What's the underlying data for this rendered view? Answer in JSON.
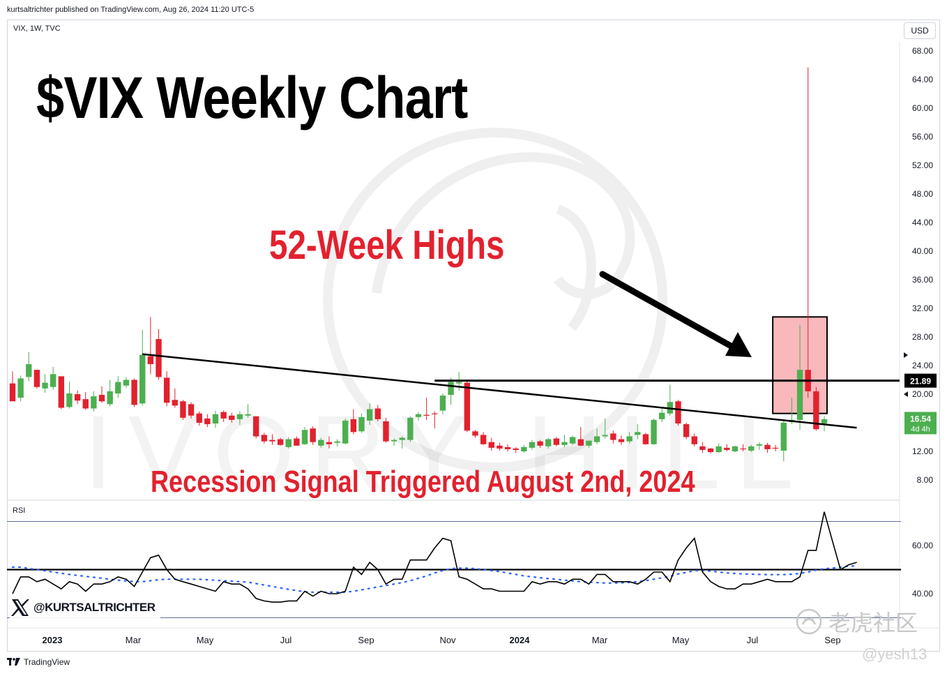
{
  "header": {
    "published_line": "kurtsaltrichter published on TradingView.com, Aug 26, 2024 11:20 UTC-5",
    "symbol_line": "VIX, 1W, TVC",
    "currency": "USD"
  },
  "annotations": {
    "main_title": "$VIX Weekly Chart",
    "highs_label": "52-Week Highs",
    "recession_label": "Recession Signal Triggered August 2nd, 2024"
  },
  "rsi": {
    "label": "RSI",
    "upper_band": 70,
    "lower_band": 30,
    "midline": 50
  },
  "social_handle": "@KURTSALTRICHTER",
  "footer_brand": "TradingView",
  "watermarks": {
    "background": "IVORY HILL",
    "corner_cn": "老虎社区",
    "corner_user": "@yesh13"
  },
  "colors": {
    "up": "#4caf50",
    "down": "#e2212e",
    "trendline": "#000000",
    "box_fill": "#f7a1a6",
    "box_stroke": "#000000",
    "rsi_line": "#000000",
    "rsi_ma": "#2962ff",
    "band": "#2a3f7a",
    "last_price_bg": "#4caf50",
    "level_bg": "#000000"
  },
  "chart_data": [
    {
      "type": "candlestick",
      "title": "",
      "x_ticks": [
        "2023",
        "Mar",
        "May",
        "Jul",
        "Sep",
        "Nov",
        "2024",
        "Mar",
        "May",
        "Jul",
        "Sep"
      ],
      "y_ticks": [
        "68.00",
        "64.00",
        "60.00",
        "56.00",
        "52.00",
        "48.00",
        "44.00",
        "40.00",
        "36.00",
        "32.00",
        "28.00",
        "24.00",
        "20.00",
        "12.00",
        "8.00"
      ],
      "ylim": [
        4.5,
        71
      ],
      "grid": false,
      "candles": [
        {
          "o": 21.5,
          "h": 23.2,
          "l": 19.0,
          "c": 19.0
        },
        {
          "o": 19.5,
          "h": 22.6,
          "l": 19.0,
          "c": 22.2
        },
        {
          "o": 22.4,
          "h": 25.9,
          "l": 21.8,
          "c": 24.2
        },
        {
          "o": 23.4,
          "h": 23.4,
          "l": 20.8,
          "c": 21.0
        },
        {
          "o": 20.8,
          "h": 22.8,
          "l": 20.2,
          "c": 21.6
        },
        {
          "o": 21.0,
          "h": 23.8,
          "l": 20.6,
          "c": 22.8
        },
        {
          "o": 22.5,
          "h": 22.5,
          "l": 17.9,
          "c": 18.1
        },
        {
          "o": 18.2,
          "h": 21.8,
          "l": 18.0,
          "c": 20.1
        },
        {
          "o": 20.0,
          "h": 20.5,
          "l": 18.6,
          "c": 19.1
        },
        {
          "o": 19.3,
          "h": 20.3,
          "l": 17.8,
          "c": 18.0
        },
        {
          "o": 18.0,
          "h": 20.4,
          "l": 17.6,
          "c": 19.7
        },
        {
          "o": 19.9,
          "h": 21.1,
          "l": 18.8,
          "c": 19.0
        },
        {
          "o": 18.6,
          "h": 22.0,
          "l": 18.3,
          "c": 20.4
        },
        {
          "o": 20.1,
          "h": 22.5,
          "l": 19.5,
          "c": 21.7
        },
        {
          "o": 21.2,
          "h": 22.4,
          "l": 20.9,
          "c": 22.0
        },
        {
          "o": 22.0,
          "h": 22.2,
          "l": 18.2,
          "c": 18.5
        },
        {
          "o": 18.7,
          "h": 29.0,
          "l": 18.4,
          "c": 25.5
        },
        {
          "o": 25.3,
          "h": 30.8,
          "l": 22.8,
          "c": 24.2
        },
        {
          "o": 27.7,
          "h": 29.1,
          "l": 22.0,
          "c": 22.4
        },
        {
          "o": 22.3,
          "h": 23.2,
          "l": 18.3,
          "c": 18.8
        },
        {
          "o": 19.2,
          "h": 20.8,
          "l": 18.1,
          "c": 18.4
        },
        {
          "o": 19.0,
          "h": 19.2,
          "l": 16.4,
          "c": 16.7
        },
        {
          "o": 18.6,
          "h": 18.9,
          "l": 16.6,
          "c": 17.0
        },
        {
          "o": 17.3,
          "h": 17.6,
          "l": 15.6,
          "c": 16.0
        },
        {
          "o": 16.6,
          "h": 17.2,
          "l": 15.4,
          "c": 15.8
        },
        {
          "o": 15.9,
          "h": 17.7,
          "l": 15.3,
          "c": 17.2
        },
        {
          "o": 17.5,
          "h": 17.7,
          "l": 16.1,
          "c": 16.6
        },
        {
          "o": 17.0,
          "h": 17.4,
          "l": 16.0,
          "c": 16.4
        },
        {
          "o": 16.5,
          "h": 17.6,
          "l": 15.7,
          "c": 17.2
        },
        {
          "o": 17.0,
          "h": 18.6,
          "l": 16.7,
          "c": 17.2
        },
        {
          "o": 16.9,
          "h": 16.9,
          "l": 13.8,
          "c": 14.1
        },
        {
          "o": 14.3,
          "h": 14.6,
          "l": 13.1,
          "c": 13.4
        },
        {
          "o": 13.6,
          "h": 14.4,
          "l": 12.9,
          "c": 13.4
        },
        {
          "o": 13.7,
          "h": 13.9,
          "l": 12.8,
          "c": 12.9
        },
        {
          "o": 12.6,
          "h": 14.0,
          "l": 12.4,
          "c": 13.7
        },
        {
          "o": 13.8,
          "h": 14.1,
          "l": 12.8,
          "c": 12.8
        },
        {
          "o": 13.0,
          "h": 15.4,
          "l": 12.9,
          "c": 15.0
        },
        {
          "o": 15.2,
          "h": 15.5,
          "l": 12.9,
          "c": 13.3
        },
        {
          "o": 12.8,
          "h": 13.9,
          "l": 12.5,
          "c": 13.6
        },
        {
          "o": 13.3,
          "h": 14.1,
          "l": 12.4,
          "c": 13.0
        },
        {
          "o": 13.2,
          "h": 13.7,
          "l": 12.7,
          "c": 13.4
        },
        {
          "o": 13.1,
          "h": 16.6,
          "l": 13.0,
          "c": 16.3
        },
        {
          "o": 16.5,
          "h": 17.9,
          "l": 14.4,
          "c": 14.7
        },
        {
          "o": 14.8,
          "h": 17.3,
          "l": 14.6,
          "c": 16.8
        },
        {
          "o": 16.3,
          "h": 18.7,
          "l": 15.7,
          "c": 17.9
        },
        {
          "o": 18.0,
          "h": 18.5,
          "l": 16.2,
          "c": 16.5
        },
        {
          "o": 16.2,
          "h": 16.7,
          "l": 13.2,
          "c": 13.4
        },
        {
          "o": 13.4,
          "h": 13.8,
          "l": 12.8,
          "c": 13.6
        },
        {
          "o": 13.6,
          "h": 14.1,
          "l": 12.4,
          "c": 13.9
        },
        {
          "o": 13.6,
          "h": 16.9,
          "l": 13.3,
          "c": 16.7
        },
        {
          "o": 16.8,
          "h": 17.5,
          "l": 16.3,
          "c": 17.2
        },
        {
          "o": 17.1,
          "h": 19.5,
          "l": 16.4,
          "c": 17.0
        },
        {
          "o": 17.3,
          "h": 17.6,
          "l": 15.2,
          "c": 17.2
        },
        {
          "o": 17.7,
          "h": 20.1,
          "l": 17.2,
          "c": 19.8
        },
        {
          "o": 19.9,
          "h": 22.3,
          "l": 18.5,
          "c": 21.7
        },
        {
          "o": 21.5,
          "h": 23.1,
          "l": 20.5,
          "c": 21.7
        },
        {
          "o": 21.6,
          "h": 21.8,
          "l": 14.7,
          "c": 14.9
        },
        {
          "o": 14.8,
          "h": 15.0,
          "l": 13.9,
          "c": 14.2
        },
        {
          "o": 14.3,
          "h": 14.7,
          "l": 12.9,
          "c": 13.0
        },
        {
          "o": 13.3,
          "h": 13.9,
          "l": 12.1,
          "c": 12.5
        },
        {
          "o": 12.8,
          "h": 13.2,
          "l": 12.1,
          "c": 12.4
        },
        {
          "o": 12.6,
          "h": 13.0,
          "l": 12.0,
          "c": 12.3
        },
        {
          "o": 12.4,
          "h": 12.6,
          "l": 11.8,
          "c": 12.2
        },
        {
          "o": 12.0,
          "h": 12.9,
          "l": 11.8,
          "c": 12.6
        },
        {
          "o": 12.5,
          "h": 13.6,
          "l": 12.2,
          "c": 13.3
        },
        {
          "o": 13.4,
          "h": 13.6,
          "l": 12.5,
          "c": 12.8
        },
        {
          "o": 12.7,
          "h": 13.9,
          "l": 12.4,
          "c": 13.7
        },
        {
          "o": 13.8,
          "h": 14.0,
          "l": 12.7,
          "c": 12.9
        },
        {
          "o": 12.9,
          "h": 14.3,
          "l": 12.6,
          "c": 13.3
        },
        {
          "o": 13.1,
          "h": 14.2,
          "l": 12.9,
          "c": 14.0
        },
        {
          "o": 13.7,
          "h": 15.4,
          "l": 12.7,
          "c": 12.8
        },
        {
          "o": 12.8,
          "h": 13.3,
          "l": 12.5,
          "c": 13.5
        },
        {
          "o": 13.3,
          "h": 15.2,
          "l": 13.0,
          "c": 14.1
        },
        {
          "o": 14.1,
          "h": 16.6,
          "l": 13.8,
          "c": 14.3
        },
        {
          "o": 14.5,
          "h": 14.9,
          "l": 13.1,
          "c": 13.6
        },
        {
          "o": 13.7,
          "h": 14.2,
          "l": 12.9,
          "c": 13.3
        },
        {
          "o": 13.4,
          "h": 14.7,
          "l": 13.1,
          "c": 14.1
        },
        {
          "o": 14.3,
          "h": 15.8,
          "l": 13.7,
          "c": 14.7
        },
        {
          "o": 14.4,
          "h": 14.6,
          "l": 12.9,
          "c": 13.0
        },
        {
          "o": 13.0,
          "h": 16.6,
          "l": 12.9,
          "c": 16.4
        },
        {
          "o": 16.5,
          "h": 18.0,
          "l": 16.1,
          "c": 17.4
        },
        {
          "o": 17.3,
          "h": 21.3,
          "l": 17.0,
          "c": 18.9
        },
        {
          "o": 19.0,
          "h": 19.2,
          "l": 15.6,
          "c": 15.9
        },
        {
          "o": 15.8,
          "h": 16.0,
          "l": 13.7,
          "c": 14.0
        },
        {
          "o": 14.1,
          "h": 14.5,
          "l": 12.7,
          "c": 13.0
        },
        {
          "o": 12.7,
          "h": 13.3,
          "l": 11.8,
          "c": 12.2
        },
        {
          "o": 12.4,
          "h": 12.5,
          "l": 11.7,
          "c": 11.9
        },
        {
          "o": 11.9,
          "h": 13.1,
          "l": 11.8,
          "c": 12.7
        },
        {
          "o": 12.5,
          "h": 13.0,
          "l": 12.0,
          "c": 12.2
        },
        {
          "o": 12.0,
          "h": 12.8,
          "l": 11.9,
          "c": 12.7
        },
        {
          "o": 12.4,
          "h": 13.0,
          "l": 12.0,
          "c": 12.3
        },
        {
          "o": 12.1,
          "h": 12.9,
          "l": 11.9,
          "c": 12.7
        },
        {
          "o": 12.8,
          "h": 13.3,
          "l": 12.2,
          "c": 13.0
        },
        {
          "o": 12.9,
          "h": 13.2,
          "l": 11.8,
          "c": 12.3
        },
        {
          "o": 12.5,
          "h": 12.9,
          "l": 12.0,
          "c": 12.4
        },
        {
          "o": 12.1,
          "h": 16.3,
          "l": 10.6,
          "c": 16.0
        },
        {
          "o": 16.1,
          "h": 19.5,
          "l": 15.8,
          "c": 16.4
        },
        {
          "o": 16.4,
          "h": 29.7,
          "l": 15.0,
          "c": 23.4
        },
        {
          "o": 23.4,
          "h": 65.7,
          "l": 19.5,
          "c": 20.4
        },
        {
          "o": 20.4,
          "h": 21.0,
          "l": 14.9,
          "c": 15.1
        },
        {
          "o": 15.9,
          "h": 16.9,
          "l": 14.8,
          "c": 16.5
        }
      ],
      "trendline": {
        "from": {
          "index": 16,
          "value": 25.6
        },
        "to": {
          "index": 104,
          "value": 15.3
        }
      },
      "horizontal_level": {
        "value": 21.89,
        "from_index": 52,
        "label": "21.89"
      },
      "highlight_box": {
        "from_index": 94,
        "to_index": 100,
        "top": 30.8,
        "bottom": 17.3
      },
      "last_price": {
        "value": "16.54",
        "countdown": "4d 4h"
      }
    },
    {
      "type": "line",
      "title": "RSI",
      "y_ticks": [
        "60.00",
        "40.00"
      ],
      "ylim": [
        27,
        77
      ],
      "bands": [
        70,
        30
      ],
      "midline": 50,
      "series": [
        {
          "name": "RSI",
          "values": [
            40,
            47,
            47,
            45,
            46,
            44,
            42,
            45,
            44,
            41,
            44,
            44,
            45,
            47,
            46,
            43,
            49,
            55,
            56,
            50,
            46,
            45,
            44,
            43,
            42,
            41,
            45,
            44,
            44,
            42,
            38,
            37,
            36.5,
            36.5,
            37,
            37,
            41,
            39,
            41,
            40,
            40,
            41,
            51,
            48,
            53,
            50,
            44,
            46,
            46,
            54,
            54,
            54,
            59,
            63,
            62,
            47,
            46,
            44,
            42,
            42,
            41,
            41,
            41,
            41,
            45,
            44,
            45,
            45,
            44,
            46,
            46,
            44,
            48,
            48,
            45,
            45,
            45,
            44,
            46,
            49,
            49,
            45,
            54,
            59,
            63,
            49,
            45,
            43,
            42,
            42,
            44,
            44,
            45,
            46,
            45,
            45,
            45,
            47,
            58,
            58,
            74,
            62,
            50,
            52,
            53
          ]
        },
        {
          "name": "RSI-based MA",
          "values": [
            51,
            51,
            50.5,
            50,
            49.5,
            49,
            48.5,
            48,
            47.6,
            47.2,
            46.8,
            46.4,
            46,
            45.6,
            45.3,
            45,
            45,
            45.4,
            45.8,
            46,
            46,
            46,
            46,
            46,
            45.8,
            45.6,
            45.4,
            45.2,
            45,
            44.8,
            44.2,
            43.6,
            43,
            42.4,
            41.8,
            41.3,
            40.8,
            40.6,
            40.6,
            40.6,
            40.6,
            40.6,
            41,
            41.6,
            42.2,
            42.8,
            43.4,
            44,
            44.6,
            45.4,
            46.4,
            47.4,
            48.6,
            49.6,
            50.4,
            50.6,
            50.6,
            50.4,
            50,
            49.6,
            49.2,
            48.6,
            48,
            47.4,
            47,
            46.6,
            46.3,
            46,
            45.6,
            45.3,
            45,
            44.8,
            44.6,
            44.4,
            44.4,
            44.5,
            44.7,
            45,
            45.4,
            46,
            46.6,
            47.2,
            48.2,
            48.8,
            49.6,
            49.6,
            49.4,
            49,
            48.6,
            48.4,
            48.2,
            48.1,
            48,
            47.9,
            47.9,
            47.9,
            48.1,
            48.4,
            49,
            49.8,
            50.4,
            50.6,
            51,
            51.4,
            51.6
          ]
        }
      ]
    }
  ]
}
